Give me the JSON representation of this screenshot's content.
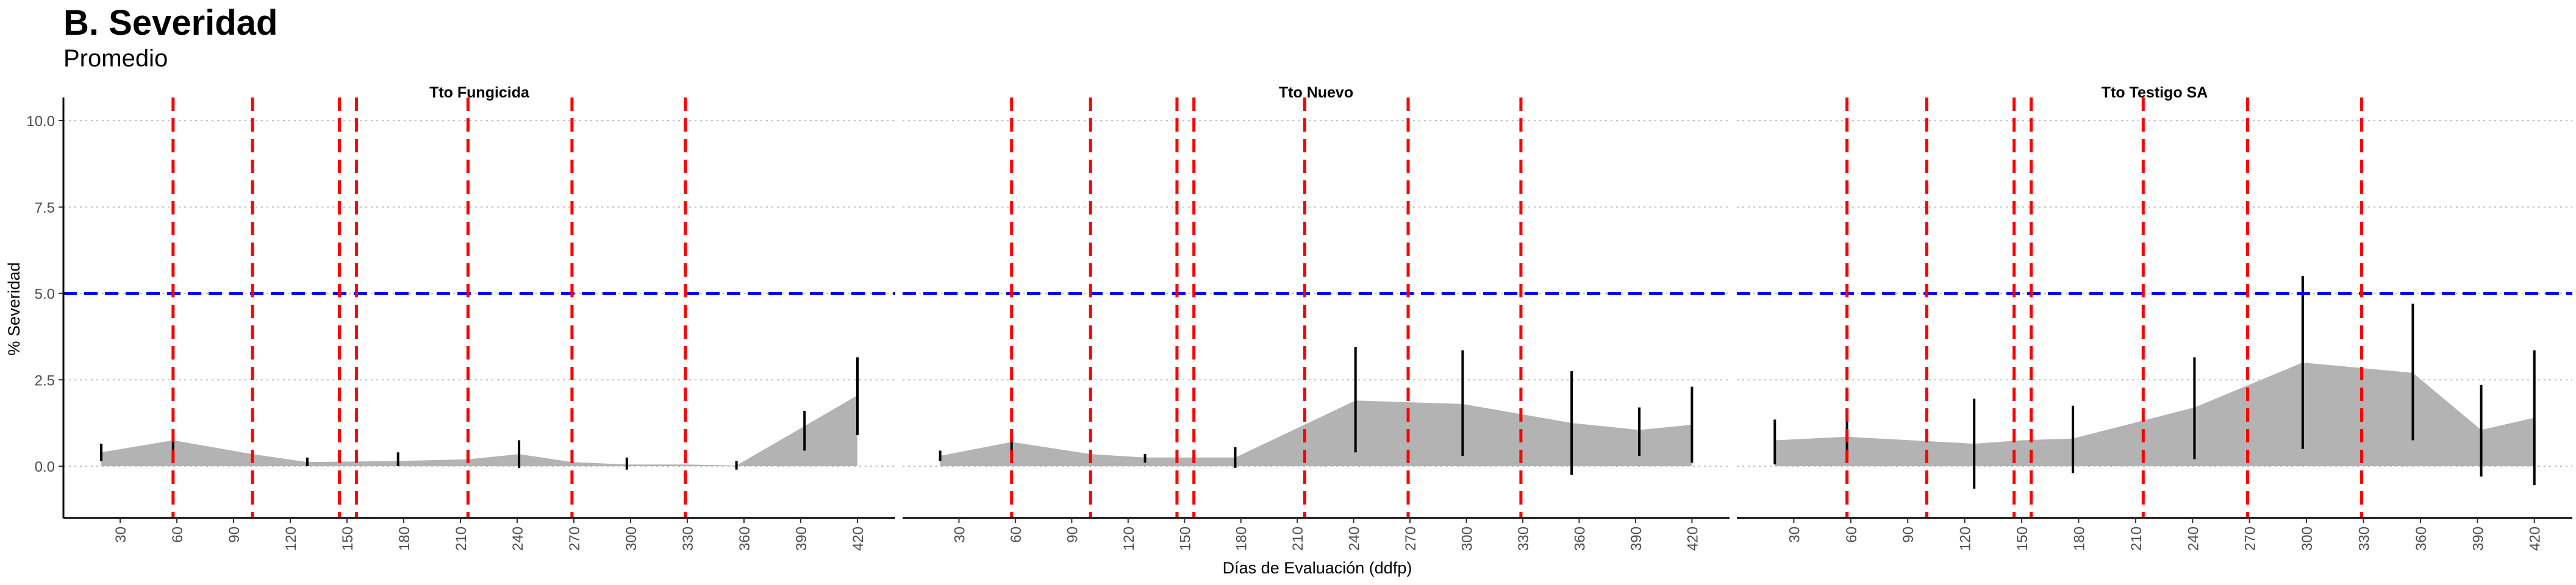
{
  "chart_data": {
    "type": "area",
    "title": "B. Severidad",
    "subtitle": "Promedio",
    "xlabel": "Días de Evaluación (ddfp)",
    "ylabel": "% Severidad",
    "ylim": [
      -1.5,
      11
    ],
    "yticks": [
      0.0,
      2.5,
      5.0,
      7.5,
      10.0
    ],
    "ytick_labels": [
      "0.0",
      "2.5",
      "5.0",
      "7.5",
      "10.0"
    ],
    "xlim": [
      0,
      440
    ],
    "xticks": [
      30,
      60,
      90,
      120,
      150,
      180,
      210,
      240,
      270,
      300,
      330,
      360,
      390,
      420
    ],
    "grid": "horizontal dotted",
    "threshold_line": {
      "y": 5.0,
      "color": "#0000ff"
    },
    "event_lines": {
      "x": [
        58,
        100,
        146,
        155,
        214,
        269,
        329
      ],
      "color": "#ff0000"
    },
    "colors": {
      "area": "#b3b3b3",
      "errorbar": "#000000"
    },
    "panels": [
      {
        "name": "Tto Fungicida",
        "x": [
          20,
          58,
          100,
          129,
          177,
          214,
          241,
          269,
          298,
          329,
          356,
          420
        ],
        "y": [
          0.4,
          0.75,
          0.35,
          0.12,
          0.15,
          0.2,
          0.35,
          0.12,
          0.05,
          0.05,
          0.02,
          2.05
        ],
        "errorbars": [
          {
            "x": 20,
            "low": 0.15,
            "high": 0.65
          },
          {
            "x": 58,
            "low": 0.45,
            "high": 1.05
          },
          {
            "x": 129,
            "low": 0.0,
            "high": 0.25
          },
          {
            "x": 177,
            "low": 0.0,
            "high": 0.4
          },
          {
            "x": 241,
            "low": -0.05,
            "high": 0.75
          },
          {
            "x": 298,
            "low": -0.1,
            "high": 0.25
          },
          {
            "x": 356,
            "low": -0.1,
            "high": 0.15
          },
          {
            "x": 392,
            "low": 0.45,
            "high": 1.6
          },
          {
            "x": 420,
            "low": 0.9,
            "high": 3.15
          }
        ]
      },
      {
        "name": "Tto Nuevo",
        "x": [
          20,
          58,
          100,
          129,
          150,
          177,
          241,
          298,
          356,
          392,
          420
        ],
        "y": [
          0.3,
          0.7,
          0.35,
          0.25,
          0.25,
          0.25,
          1.9,
          1.8,
          1.25,
          1.05,
          1.2
        ],
        "errorbars": [
          {
            "x": 20,
            "low": 0.15,
            "high": 0.45
          },
          {
            "x": 58,
            "low": 0.4,
            "high": 1.0
          },
          {
            "x": 129,
            "low": 0.1,
            "high": 0.35
          },
          {
            "x": 177,
            "low": -0.05,
            "high": 0.55
          },
          {
            "x": 241,
            "low": 0.4,
            "high": 3.45
          },
          {
            "x": 298,
            "low": 0.3,
            "high": 3.35
          },
          {
            "x": 356,
            "low": -0.25,
            "high": 2.75
          },
          {
            "x": 392,
            "low": 0.3,
            "high": 1.7
          },
          {
            "x": 420,
            "low": 0.1,
            "high": 2.3
          }
        ]
      },
      {
        "name": "Tto Testigo SA",
        "x": [
          20,
          58,
          125,
          150,
          177,
          241,
          298,
          356,
          392,
          420
        ],
        "y": [
          0.75,
          0.85,
          0.65,
          0.75,
          0.8,
          1.7,
          3.0,
          2.7,
          1.05,
          1.4
        ],
        "errorbars": [
          {
            "x": 20,
            "low": 0.05,
            "high": 1.35
          },
          {
            "x": 58,
            "low": 0.3,
            "high": 1.6
          },
          {
            "x": 125,
            "low": -0.65,
            "high": 1.95
          },
          {
            "x": 177,
            "low": -0.2,
            "high": 1.75
          },
          {
            "x": 241,
            "low": 0.2,
            "high": 3.15
          },
          {
            "x": 298,
            "low": 0.5,
            "high": 5.5
          },
          {
            "x": 356,
            "low": 0.75,
            "high": 4.7
          },
          {
            "x": 392,
            "low": -0.3,
            "high": 2.35
          },
          {
            "x": 420,
            "low": -0.55,
            "high": 3.35
          }
        ]
      }
    ]
  }
}
